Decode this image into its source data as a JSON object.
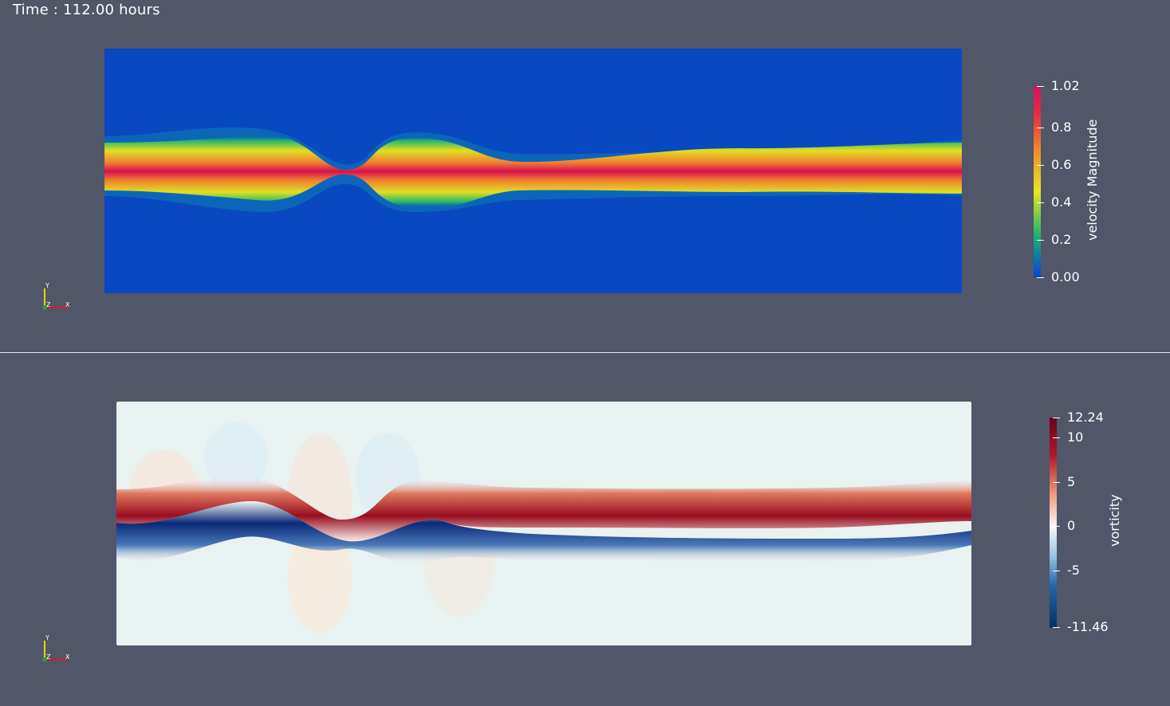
{
  "time_label": "Time : 112.00 hours",
  "velocity_colorbar": {
    "title": "velocity Magnitude",
    "ticks": [
      "1.02",
      "0.8",
      "0.6",
      "0.4",
      "0.2",
      "0.00"
    ],
    "colors": [
      "#0a3fd8",
      "#1eb46e",
      "#e8e81e",
      "#f09028",
      "#e82e3e",
      "#d81060"
    ]
  },
  "vorticity_colorbar": {
    "title": "vorticity",
    "ticks": [
      "12.24",
      "10",
      "5",
      "0",
      "-5",
      "-11.46"
    ],
    "colors": [
      "#67001f",
      "#b2182b",
      "#f4a582",
      "#f7f7f7",
      "#92c5de",
      "#2166ac",
      "#053061"
    ]
  },
  "axes": {
    "y": "Y",
    "z": "Z",
    "x": "X"
  }
}
